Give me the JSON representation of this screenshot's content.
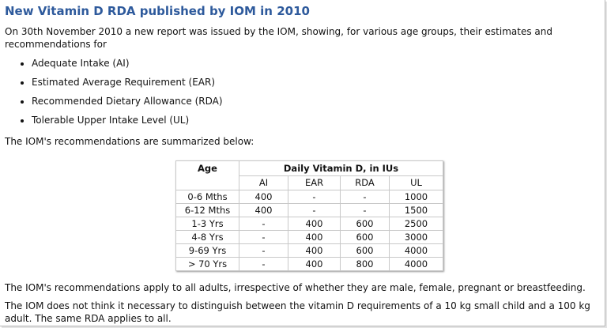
{
  "title": "New Vitamin D RDA published by IOM in 2010",
  "intro": "On 30th November 2010 a new report was issued by the IOM, showing, for various age groups, their estimates and recommendations for",
  "bullets": [
    "Adequate Intake (AI)",
    "Estimated Average Requirement (EAR)",
    "Recommended Dietary Allowance (RDA)",
    "Tolerable Upper Intake Level (UL)"
  ],
  "summary_intro": "The IOM's recommendations are summarized below:",
  "table": {
    "header": [
      "Age",
      "Daily Vitamin D, in IUs"
    ],
    "subheader": [
      "AI",
      "EAR",
      "RDA",
      "UL"
    ],
    "rows": [
      [
        "0-6 Mths",
        "400",
        "-",
        "-",
        "1000"
      ],
      [
        "6-12 Mths",
        "400",
        "-",
        "-",
        "1500"
      ],
      [
        "1-3 Yrs",
        "-",
        "400",
        "600",
        "2500"
      ],
      [
        "4-8 Yrs",
        "-",
        "400",
        "600",
        "3000"
      ],
      [
        "9-69 Yrs",
        "-",
        "400",
        "600",
        "4000"
      ],
      [
        "> 70 Yrs",
        "-",
        "400",
        "800",
        "4000"
      ]
    ]
  },
  "paragraphs": [
    "The IOM's recommendations apply to all adults, irrespective of whether they are male, female, pregnant or breastfeeding.",
    "The IOM does not think it necessary to distinguish between the vitamin D requirements of a 10 kg small child and a 100 kg adult. The same RDA applies to all."
  ]
}
